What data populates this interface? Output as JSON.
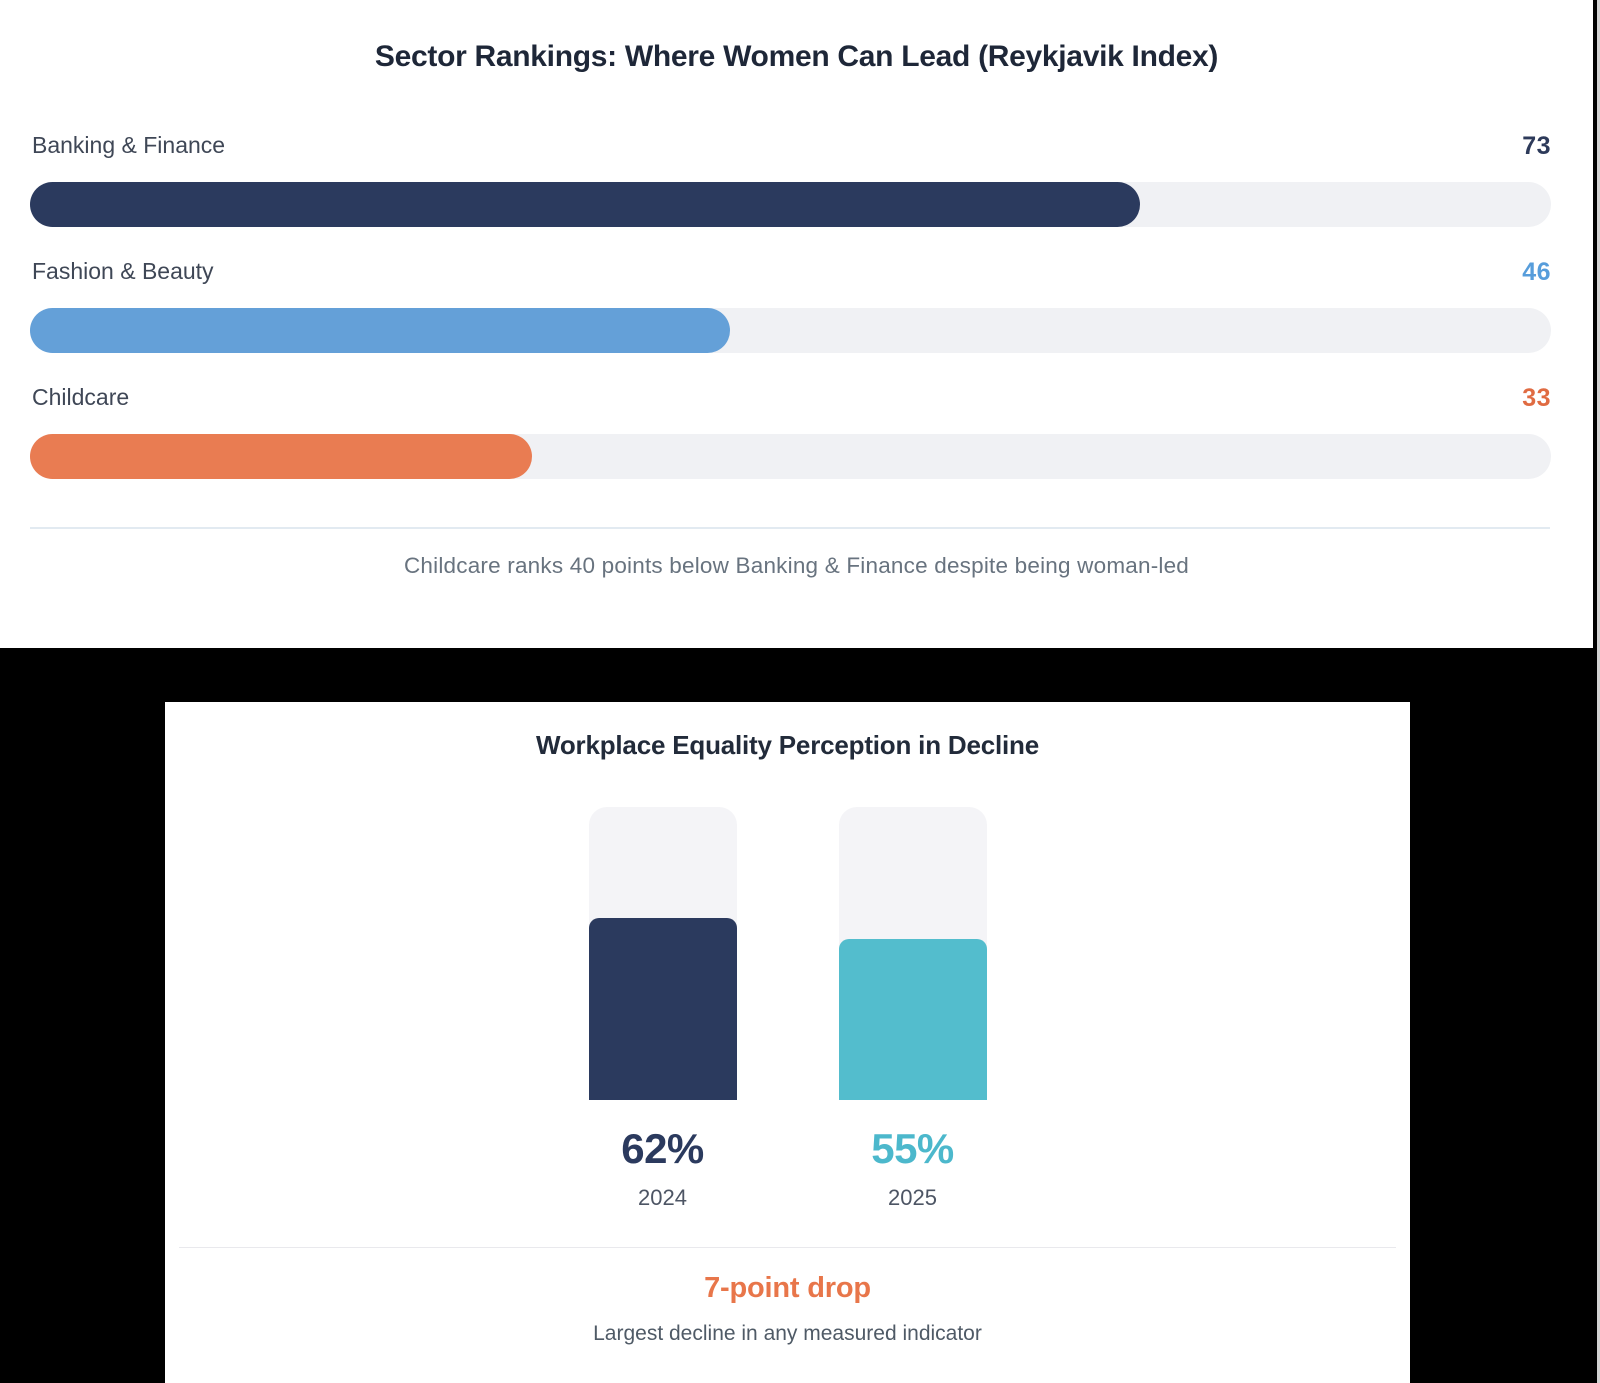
{
  "chart_data": [
    {
      "type": "bar",
      "orientation": "horizontal",
      "title": "Sector Rankings: Where Women Can Lead (Reykjavik Index)",
      "categories": [
        "Banking & Finance",
        "Fashion & Beauty",
        "Childcare"
      ],
      "values": [
        73,
        46,
        33
      ],
      "xlim": [
        0,
        100
      ],
      "grid": false,
      "legend": false,
      "bar_colors": [
        "#2b3a5e",
        "#64a0d8",
        "#e97c52"
      ],
      "value_colors": [
        "#2d3a5a",
        "#579ddb",
        "#e06b42"
      ],
      "track_color": "#f0f1f4",
      "annotation": "Childcare ranks 40 points below Banking & Finance despite being woman-led"
    },
    {
      "type": "bar",
      "orientation": "vertical",
      "title": "Workplace Equality Perception in Decline",
      "categories": [
        "2024",
        "2025"
      ],
      "values": [
        62,
        55
      ],
      "value_labels": [
        "62%",
        "55%"
      ],
      "ylim": [
        0,
        100
      ],
      "grid": false,
      "legend": false,
      "bar_colors": [
        "#2b3a5e",
        "#53bdcd"
      ],
      "value_colors": [
        "#2b3a5e",
        "#4cb8cc"
      ],
      "track_color": "#f4f4f7",
      "annotation": "7-point drop",
      "annotation_color": "#e8764a",
      "note": "Largest decline in any measured indicator"
    }
  ]
}
